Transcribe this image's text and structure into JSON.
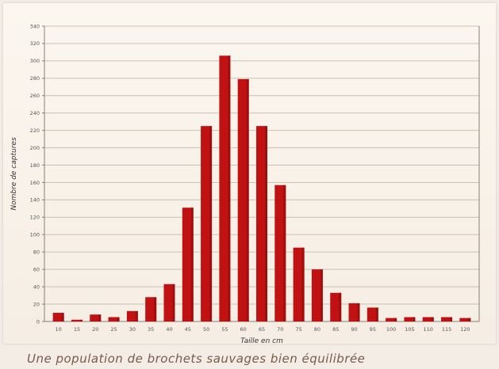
{
  "colors": {
    "bar": "#c01212",
    "bar_dark": "#8a0b0b",
    "grid": "#cdbfb3",
    "axis": "#8a7e74",
    "caption": "#7a5a4a"
  },
  "caption": "Une population de brochets sauvages bien équilibrée",
  "chart_data": {
    "type": "bar",
    "categories": [
      "10",
      "15",
      "20",
      "25",
      "30",
      "35",
      "40",
      "45",
      "50",
      "55",
      "60",
      "65",
      "70",
      "75",
      "80",
      "85",
      "90",
      "95",
      "100",
      "105",
      "110",
      "115",
      "120"
    ],
    "values": [
      10,
      2,
      8,
      5,
      12,
      28,
      43,
      131,
      225,
      306,
      279,
      225,
      157,
      85,
      60,
      33,
      21,
      16,
      4,
      5,
      5,
      5,
      4
    ],
    "title": "",
    "xlabel": "Taille en cm",
    "ylabel": "Nombre de captures",
    "ylim": [
      0,
      340
    ],
    "yticks": [
      0,
      20,
      40,
      60,
      80,
      100,
      120,
      140,
      160,
      180,
      200,
      220,
      240,
      260,
      280,
      300,
      320,
      340
    ],
    "grid": true
  }
}
